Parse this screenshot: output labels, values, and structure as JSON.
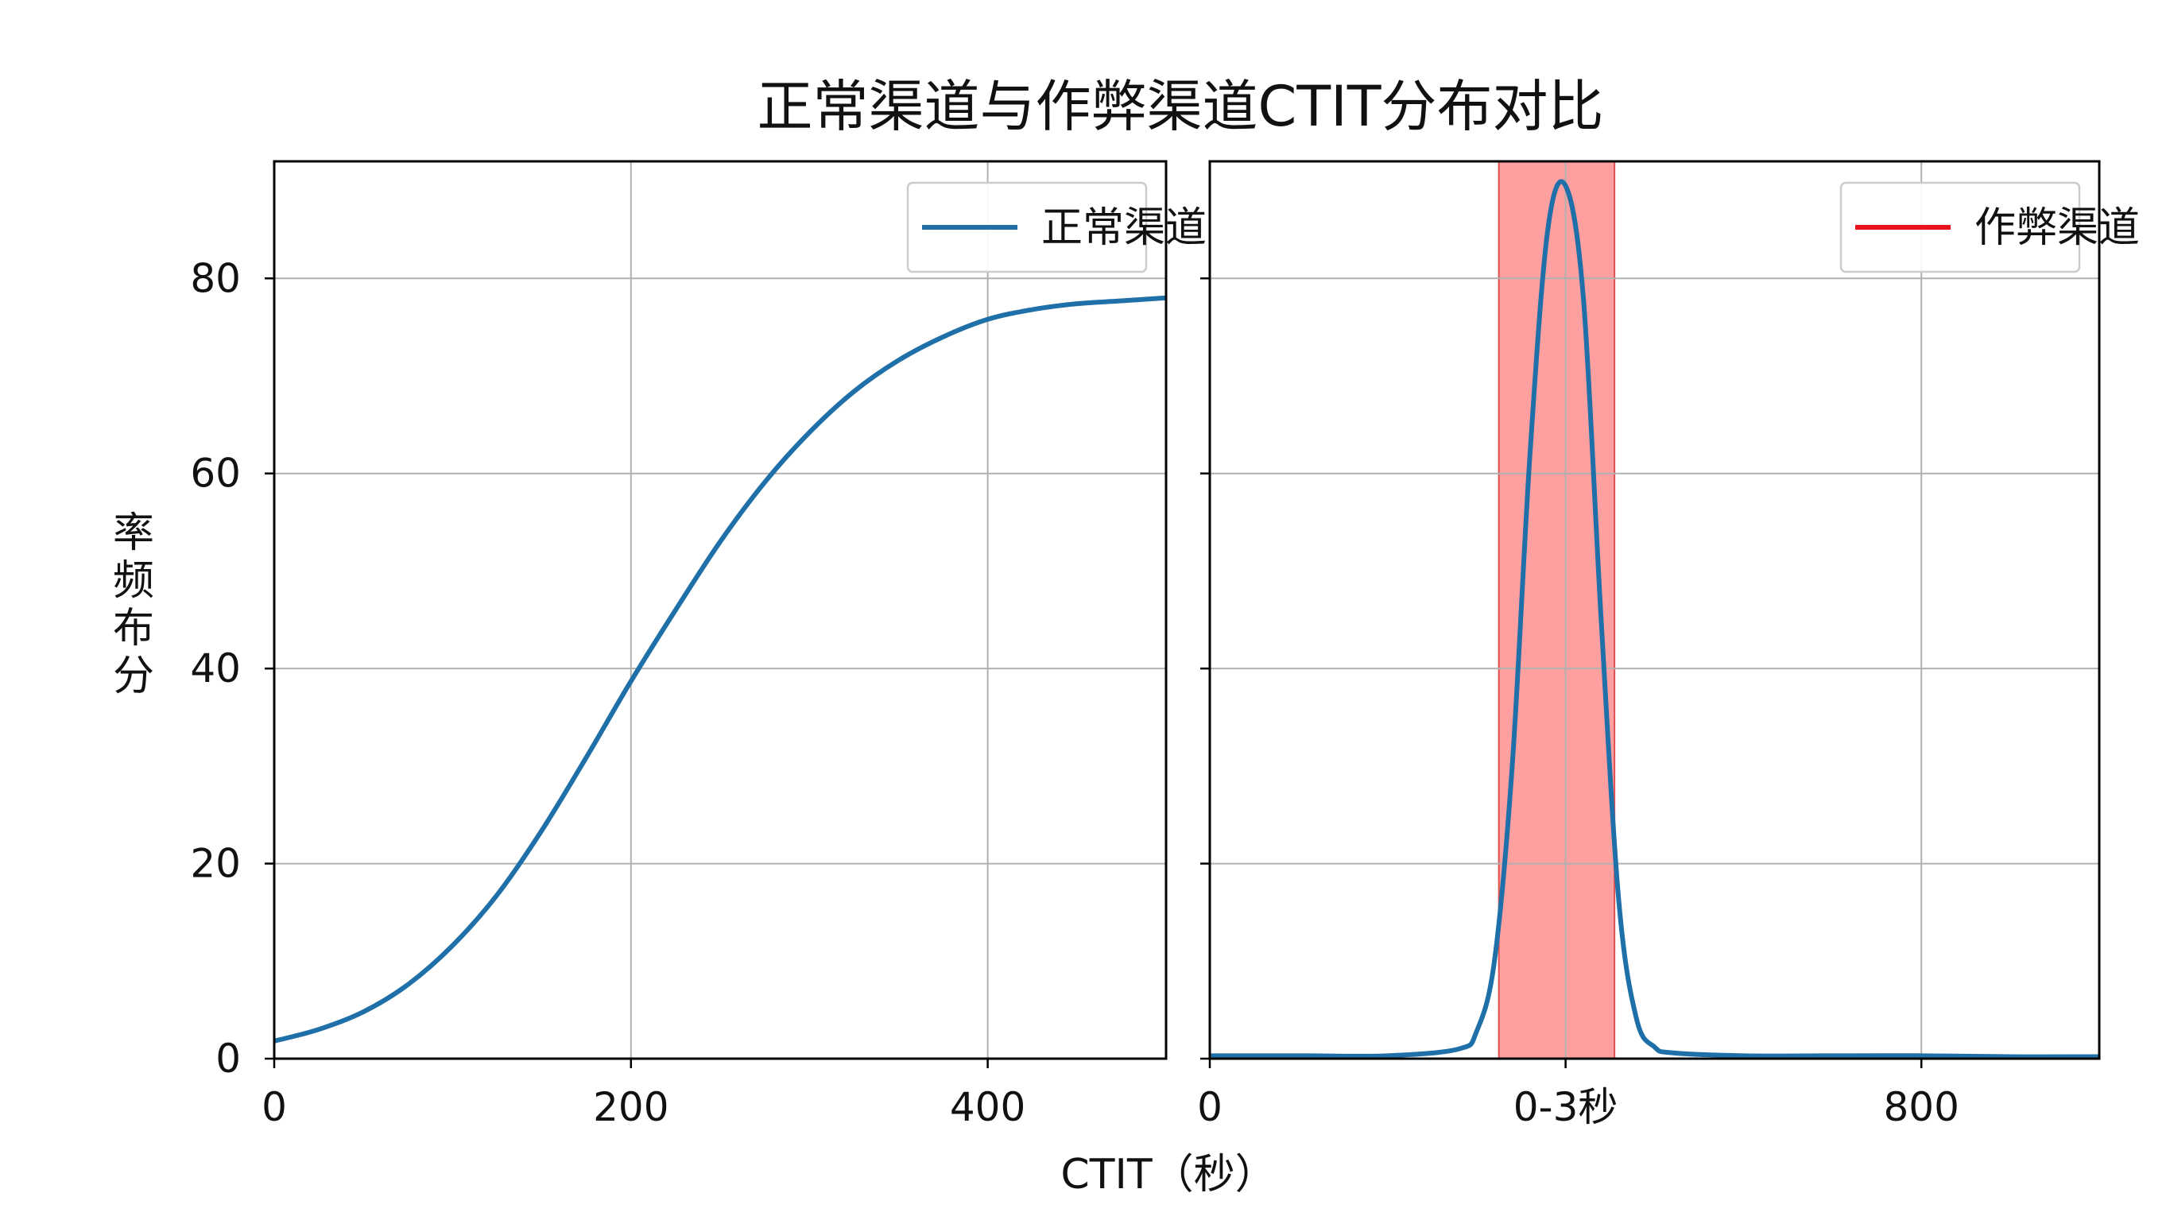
{
  "figure": {
    "title": "正常渠道与作弊渠道CTIT分布对比",
    "xlabel": "CTIT（秒）",
    "ylabel": "分布频率"
  },
  "colors": {
    "normal_line": "#1f6fa8",
    "fraud_line": "#1f6fa8",
    "fraud_legend_line": "#e8141b",
    "highlight_fill": "#ff8080",
    "grid": "#b0b0b0",
    "axis": "#000000"
  },
  "chart_data": [
    {
      "type": "line",
      "panel": "left",
      "xlim": [
        0,
        500
      ],
      "ylim": [
        0,
        92
      ],
      "xticks": [
        0,
        200,
        400
      ],
      "xtick_labels": [
        "0",
        "200",
        "400"
      ],
      "yticks": [
        0,
        20,
        40,
        60,
        80
      ],
      "ytick_labels": [
        "0",
        "20",
        "40",
        "60",
        "80"
      ],
      "grid": true,
      "legend_position": "top-right",
      "series": [
        {
          "name": "正常渠道",
          "x": [
            0,
            25,
            50,
            75,
            100,
            125,
            150,
            175,
            200,
            225,
            250,
            275,
            300,
            325,
            350,
            375,
            400,
            425,
            450,
            475,
            500
          ],
          "y": [
            1.8,
            3.0,
            4.8,
            7.6,
            11.6,
            16.8,
            23.4,
            30.9,
            38.7,
            46.0,
            53.0,
            59.1,
            64.2,
            68.4,
            71.6,
            74.0,
            75.8,
            76.8,
            77.4,
            77.7,
            78.0
          ]
        }
      ]
    },
    {
      "type": "line",
      "panel": "right",
      "xlim": [
        0,
        1000
      ],
      "ylim": [
        0,
        92
      ],
      "xticks": [
        0,
        400,
        800
      ],
      "xtick_labels": [
        "0",
        "0-3秒",
        "800"
      ],
      "yticks": [
        0,
        20,
        40,
        60,
        80
      ],
      "grid": true,
      "legend_position": "top-right",
      "highlight_band": {
        "x_start": 325,
        "x_end": 455
      },
      "series": [
        {
          "name": "作弊渠道",
          "x": [
            0,
            100,
            200,
            280,
            300,
            320,
            340,
            360,
            380,
            400,
            420,
            440,
            460,
            480,
            500,
            520,
            600,
            700,
            800,
            900,
            1000
          ],
          "y": [
            0.3,
            0.3,
            0.3,
            1.0,
            2.8,
            10.0,
            30.0,
            62.0,
            85.0,
            89.5,
            78.0,
            45.0,
            16.0,
            4.0,
            1.2,
            0.6,
            0.3,
            0.3,
            0.3,
            0.2,
            0.2
          ]
        }
      ]
    }
  ]
}
